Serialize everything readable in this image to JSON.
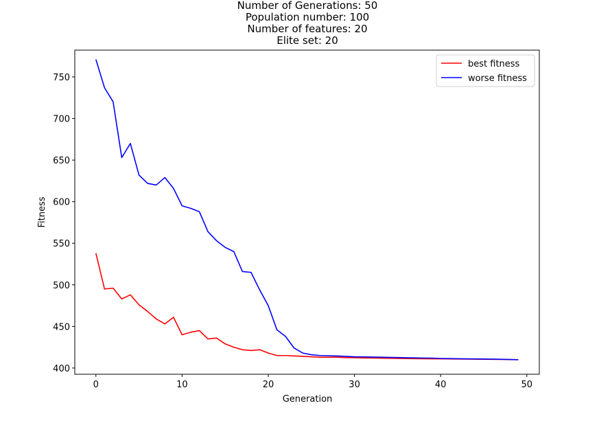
{
  "chart_data": {
    "type": "line",
    "title_lines": [
      "Number of Generations: 50",
      "Population number: 100",
      "Number of features: 20",
      "Elite set: 20"
    ],
    "xlabel": "Generation",
    "ylabel": "Fitness",
    "xlim": [
      -2.45,
      51.45
    ],
    "ylim": [
      392.5,
      782.2
    ],
    "xticks": [
      0,
      10,
      20,
      30,
      40,
      50
    ],
    "yticks": [
      400,
      450,
      500,
      550,
      600,
      650,
      700,
      750
    ],
    "grid": false,
    "legend_position": "top-right",
    "x": [
      0,
      1,
      2,
      3,
      4,
      5,
      6,
      7,
      8,
      9,
      10,
      11,
      12,
      13,
      14,
      15,
      16,
      17,
      18,
      19,
      20,
      21,
      22,
      23,
      24,
      25,
      26,
      27,
      28,
      29,
      30,
      31,
      32,
      33,
      34,
      35,
      36,
      37,
      38,
      39,
      40,
      41,
      42,
      43,
      44,
      45,
      46,
      47,
      48,
      49
    ],
    "series": [
      {
        "name": "best fitness",
        "color": "#ff0000",
        "values": [
          538,
          495,
          496,
          483,
          488,
          476,
          468,
          459,
          453,
          461,
          440,
          443,
          445,
          435,
          436,
          429,
          425,
          422,
          421,
          422,
          418,
          415,
          415,
          414.5,
          414,
          413.5,
          413,
          413,
          413,
          412.5,
          412.5,
          412,
          412,
          411.8,
          411.6,
          411.5,
          411.3,
          411.2,
          411.1,
          411,
          411,
          410.9,
          410.8,
          410.7,
          410.6,
          410.5,
          410.4,
          410.3,
          410.2,
          410
        ]
      },
      {
        "name": "worse fitness",
        "color": "#0000ff",
        "values": [
          771,
          737,
          720,
          653,
          670,
          632,
          622,
          620,
          629,
          616,
          595,
          592,
          588,
          564,
          553,
          545,
          540,
          516,
          515,
          494,
          475,
          446,
          438,
          424,
          418,
          416,
          415,
          414.8,
          414.4,
          414,
          413.5,
          413.4,
          413.2,
          413,
          412.8,
          412.6,
          412.4,
          412.2,
          412,
          411.9,
          411.5,
          411.3,
          411.1,
          411,
          410.9,
          410.8,
          410.7,
          410.5,
          410.2,
          410
        ]
      }
    ]
  }
}
